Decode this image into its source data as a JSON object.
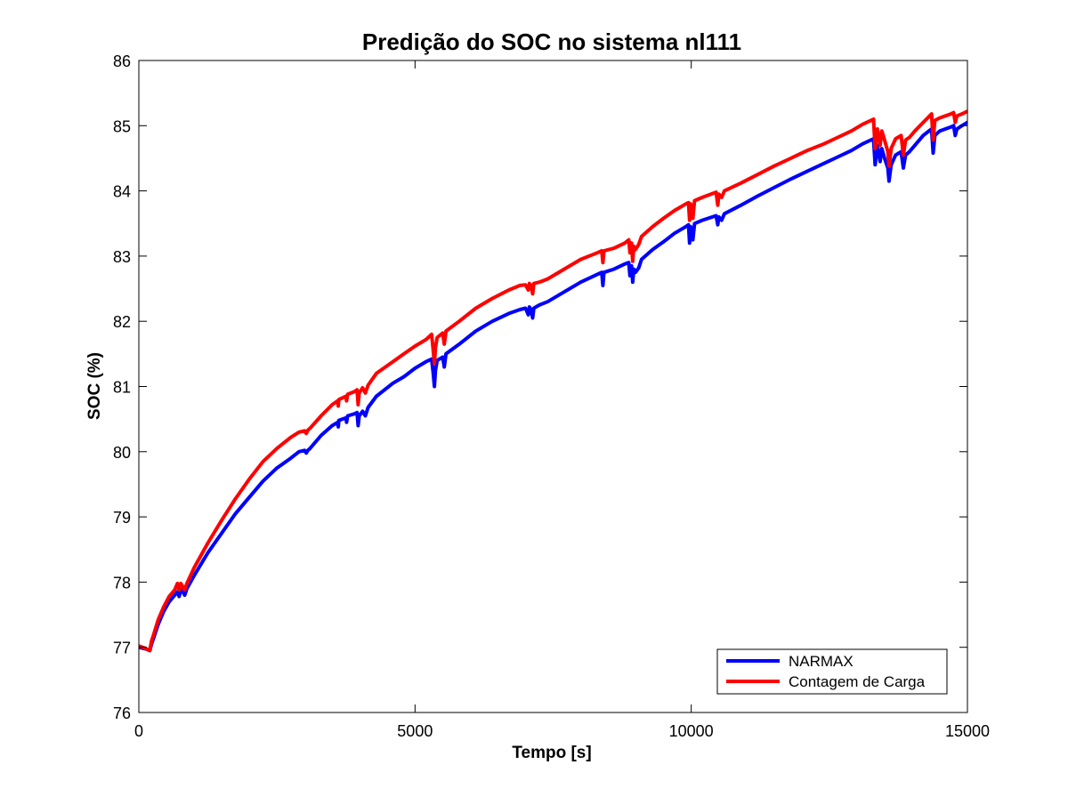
{
  "chart_data": {
    "type": "line",
    "title": "Predição do SOC no sistema nl111",
    "xlabel": "Tempo [s]",
    "ylabel": "SOC (%)",
    "xlim": [
      0,
      15000
    ],
    "ylim": [
      76,
      86
    ],
    "x_ticks": [
      0,
      5000,
      10000,
      15000
    ],
    "x_tick_labels": [
      "0",
      "5000",
      "10000",
      "15000"
    ],
    "y_ticks": [
      76,
      77,
      78,
      79,
      80,
      81,
      82,
      83,
      84,
      85,
      86
    ],
    "y_tick_labels": [
      "76",
      "77",
      "78",
      "79",
      "80",
      "81",
      "82",
      "83",
      "84",
      "85",
      "86"
    ],
    "grid": false,
    "box": true,
    "legend_position": "bottom-right",
    "series": [
      {
        "name": "NARMAX",
        "color": "#0000FF",
        "points": [
          [
            0,
            77.0
          ],
          [
            100,
            76.98
          ],
          [
            150,
            76.97
          ],
          [
            200,
            76.95
          ],
          [
            230,
            77.05
          ],
          [
            270,
            77.15
          ],
          [
            350,
            77.35
          ],
          [
            450,
            77.55
          ],
          [
            550,
            77.7
          ],
          [
            650,
            77.8
          ],
          [
            700,
            77.85
          ],
          [
            730,
            77.78
          ],
          [
            760,
            77.88
          ],
          [
            800,
            77.85
          ],
          [
            830,
            77.8
          ],
          [
            870,
            77.9
          ],
          [
            1000,
            78.1
          ],
          [
            1250,
            78.45
          ],
          [
            1500,
            78.75
          ],
          [
            1750,
            79.05
          ],
          [
            2000,
            79.3
          ],
          [
            2250,
            79.55
          ],
          [
            2500,
            79.75
          ],
          [
            2750,
            79.9
          ],
          [
            2900,
            80.0
          ],
          [
            3000,
            80.02
          ],
          [
            3030,
            79.98
          ],
          [
            3060,
            80.02
          ],
          [
            3100,
            80.05
          ],
          [
            3300,
            80.25
          ],
          [
            3500,
            80.4
          ],
          [
            3600,
            80.45
          ],
          [
            3610,
            80.38
          ],
          [
            3620,
            80.48
          ],
          [
            3750,
            80.52
          ],
          [
            3760,
            80.45
          ],
          [
            3780,
            80.55
          ],
          [
            3900,
            80.58
          ],
          [
            3950,
            80.6
          ],
          [
            3970,
            80.4
          ],
          [
            3990,
            80.55
          ],
          [
            4050,
            80.62
          ],
          [
            4100,
            80.55
          ],
          [
            4150,
            80.68
          ],
          [
            4300,
            80.85
          ],
          [
            4600,
            81.05
          ],
          [
            4800,
            81.15
          ],
          [
            5000,
            81.28
          ],
          [
            5200,
            81.38
          ],
          [
            5300,
            81.42
          ],
          [
            5330,
            81.2
          ],
          [
            5350,
            81.0
          ],
          [
            5370,
            81.25
          ],
          [
            5400,
            81.4
          ],
          [
            5500,
            81.45
          ],
          [
            5530,
            81.3
          ],
          [
            5560,
            81.5
          ],
          [
            5800,
            81.65
          ],
          [
            6100,
            81.85
          ],
          [
            6400,
            82.0
          ],
          [
            6700,
            82.12
          ],
          [
            6900,
            82.18
          ],
          [
            7000,
            82.2
          ],
          [
            7050,
            82.1
          ],
          [
            7070,
            82.22
          ],
          [
            7100,
            82.18
          ],
          [
            7130,
            82.05
          ],
          [
            7150,
            82.2
          ],
          [
            7250,
            82.25
          ],
          [
            7400,
            82.3
          ],
          [
            7700,
            82.45
          ],
          [
            8000,
            82.6
          ],
          [
            8300,
            82.72
          ],
          [
            8380,
            82.75
          ],
          [
            8400,
            82.55
          ],
          [
            8420,
            82.75
          ],
          [
            8600,
            82.8
          ],
          [
            8800,
            82.88
          ],
          [
            8870,
            82.9
          ],
          [
            8890,
            82.7
          ],
          [
            8920,
            82.85
          ],
          [
            8940,
            82.6
          ],
          [
            8960,
            82.8
          ],
          [
            8990,
            82.75
          ],
          [
            9050,
            82.82
          ],
          [
            9100,
            82.95
          ],
          [
            9300,
            83.1
          ],
          [
            9500,
            83.22
          ],
          [
            9700,
            83.35
          ],
          [
            9900,
            83.45
          ],
          [
            9950,
            83.48
          ],
          [
            9970,
            83.2
          ],
          [
            9990,
            83.45
          ],
          [
            10030,
            83.25
          ],
          [
            10060,
            83.5
          ],
          [
            10200,
            83.55
          ],
          [
            10450,
            83.62
          ],
          [
            10480,
            83.48
          ],
          [
            10500,
            83.6
          ],
          [
            10550,
            83.55
          ],
          [
            10600,
            83.65
          ],
          [
            10900,
            83.78
          ],
          [
            11200,
            83.92
          ],
          [
            11500,
            84.05
          ],
          [
            11800,
            84.18
          ],
          [
            12100,
            84.3
          ],
          [
            12400,
            84.42
          ],
          [
            12600,
            84.5
          ],
          [
            12900,
            84.62
          ],
          [
            13100,
            84.72
          ],
          [
            13300,
            84.8
          ],
          [
            13330,
            84.4
          ],
          [
            13370,
            84.7
          ],
          [
            13420,
            84.45
          ],
          [
            13450,
            84.65
          ],
          [
            13500,
            84.5
          ],
          [
            13560,
            84.35
          ],
          [
            13580,
            84.15
          ],
          [
            13620,
            84.4
          ],
          [
            13700,
            84.55
          ],
          [
            13800,
            84.6
          ],
          [
            13840,
            84.35
          ],
          [
            13880,
            84.55
          ],
          [
            13950,
            84.6
          ],
          [
            14050,
            84.7
          ],
          [
            14200,
            84.85
          ],
          [
            14350,
            84.95
          ],
          [
            14380,
            84.58
          ],
          [
            14410,
            84.85
          ],
          [
            14500,
            84.92
          ],
          [
            14700,
            84.98
          ],
          [
            14750,
            85.0
          ],
          [
            14780,
            84.85
          ],
          [
            14810,
            84.95
          ],
          [
            14900,
            85.0
          ],
          [
            15000,
            85.05
          ]
        ]
      },
      {
        "name": "Contagem de Carga",
        "color": "#FF0000",
        "points": [
          [
            0,
            77.02
          ],
          [
            100,
            76.99
          ],
          [
            150,
            76.97
          ],
          [
            200,
            76.95
          ],
          [
            230,
            77.1
          ],
          [
            270,
            77.2
          ],
          [
            350,
            77.42
          ],
          [
            450,
            77.62
          ],
          [
            550,
            77.78
          ],
          [
            650,
            77.88
          ],
          [
            700,
            77.98
          ],
          [
            730,
            77.88
          ],
          [
            760,
            77.98
          ],
          [
            800,
            77.92
          ],
          [
            830,
            77.88
          ],
          [
            870,
            77.98
          ],
          [
            1000,
            78.22
          ],
          [
            1250,
            78.6
          ],
          [
            1500,
            78.95
          ],
          [
            1750,
            79.28
          ],
          [
            2000,
            79.58
          ],
          [
            2250,
            79.85
          ],
          [
            2500,
            80.05
          ],
          [
            2750,
            80.22
          ],
          [
            2900,
            80.3
          ],
          [
            3000,
            80.32
          ],
          [
            3030,
            80.28
          ],
          [
            3060,
            80.33
          ],
          [
            3100,
            80.36
          ],
          [
            3300,
            80.55
          ],
          [
            3500,
            80.72
          ],
          [
            3600,
            80.78
          ],
          [
            3610,
            80.7
          ],
          [
            3620,
            80.8
          ],
          [
            3750,
            80.85
          ],
          [
            3760,
            80.78
          ],
          [
            3780,
            80.88
          ],
          [
            3900,
            80.92
          ],
          [
            3950,
            80.95
          ],
          [
            3970,
            80.72
          ],
          [
            3990,
            80.9
          ],
          [
            4050,
            80.98
          ],
          [
            4100,
            80.9
          ],
          [
            4150,
            81.02
          ],
          [
            4300,
            81.2
          ],
          [
            4600,
            81.38
          ],
          [
            4800,
            81.5
          ],
          [
            5000,
            81.62
          ],
          [
            5200,
            81.72
          ],
          [
            5300,
            81.8
          ],
          [
            5330,
            81.55
          ],
          [
            5350,
            81.35
          ],
          [
            5370,
            81.6
          ],
          [
            5400,
            81.75
          ],
          [
            5500,
            81.82
          ],
          [
            5530,
            81.65
          ],
          [
            5560,
            81.85
          ],
          [
            5800,
            82.0
          ],
          [
            6100,
            82.2
          ],
          [
            6400,
            82.35
          ],
          [
            6700,
            82.48
          ],
          [
            6900,
            82.55
          ],
          [
            7000,
            82.56
          ],
          [
            7050,
            82.48
          ],
          [
            7070,
            82.58
          ],
          [
            7100,
            82.55
          ],
          [
            7130,
            82.42
          ],
          [
            7150,
            82.58
          ],
          [
            7250,
            82.6
          ],
          [
            7400,
            82.65
          ],
          [
            7700,
            82.8
          ],
          [
            8000,
            82.95
          ],
          [
            8300,
            83.05
          ],
          [
            8380,
            83.08
          ],
          [
            8400,
            82.9
          ],
          [
            8420,
            83.08
          ],
          [
            8600,
            83.12
          ],
          [
            8800,
            83.2
          ],
          [
            8870,
            83.25
          ],
          [
            8890,
            83.05
          ],
          [
            8920,
            83.2
          ],
          [
            8940,
            82.92
          ],
          [
            8960,
            83.15
          ],
          [
            8990,
            83.1
          ],
          [
            9050,
            83.18
          ],
          [
            9100,
            83.3
          ],
          [
            9300,
            83.45
          ],
          [
            9500,
            83.58
          ],
          [
            9700,
            83.7
          ],
          [
            9900,
            83.8
          ],
          [
            9950,
            83.82
          ],
          [
            9970,
            83.55
          ],
          [
            9990,
            83.8
          ],
          [
            10030,
            83.58
          ],
          [
            10060,
            83.85
          ],
          [
            10200,
            83.9
          ],
          [
            10450,
            83.98
          ],
          [
            10480,
            83.78
          ],
          [
            10500,
            83.95
          ],
          [
            10550,
            83.9
          ],
          [
            10600,
            84.0
          ],
          [
            10900,
            84.12
          ],
          [
            11200,
            84.25
          ],
          [
            11500,
            84.38
          ],
          [
            11800,
            84.5
          ],
          [
            12100,
            84.62
          ],
          [
            12400,
            84.72
          ],
          [
            12600,
            84.8
          ],
          [
            12900,
            84.92
          ],
          [
            13100,
            85.02
          ],
          [
            13300,
            85.1
          ],
          [
            13330,
            84.65
          ],
          [
            13370,
            84.95
          ],
          [
            13420,
            84.7
          ],
          [
            13450,
            84.92
          ],
          [
            13500,
            84.78
          ],
          [
            13560,
            84.6
          ],
          [
            13580,
            84.38
          ],
          [
            13620,
            84.65
          ],
          [
            13700,
            84.8
          ],
          [
            13800,
            84.85
          ],
          [
            13840,
            84.55
          ],
          [
            13880,
            84.78
          ],
          [
            13950,
            84.82
          ],
          [
            14050,
            84.92
          ],
          [
            14200,
            85.05
          ],
          [
            14350,
            85.18
          ],
          [
            14380,
            84.78
          ],
          [
            14410,
            85.08
          ],
          [
            14500,
            85.12
          ],
          [
            14700,
            85.18
          ],
          [
            14750,
            85.2
          ],
          [
            14780,
            85.05
          ],
          [
            14810,
            85.15
          ],
          [
            14900,
            85.18
          ],
          [
            15000,
            85.22
          ]
        ]
      }
    ]
  }
}
